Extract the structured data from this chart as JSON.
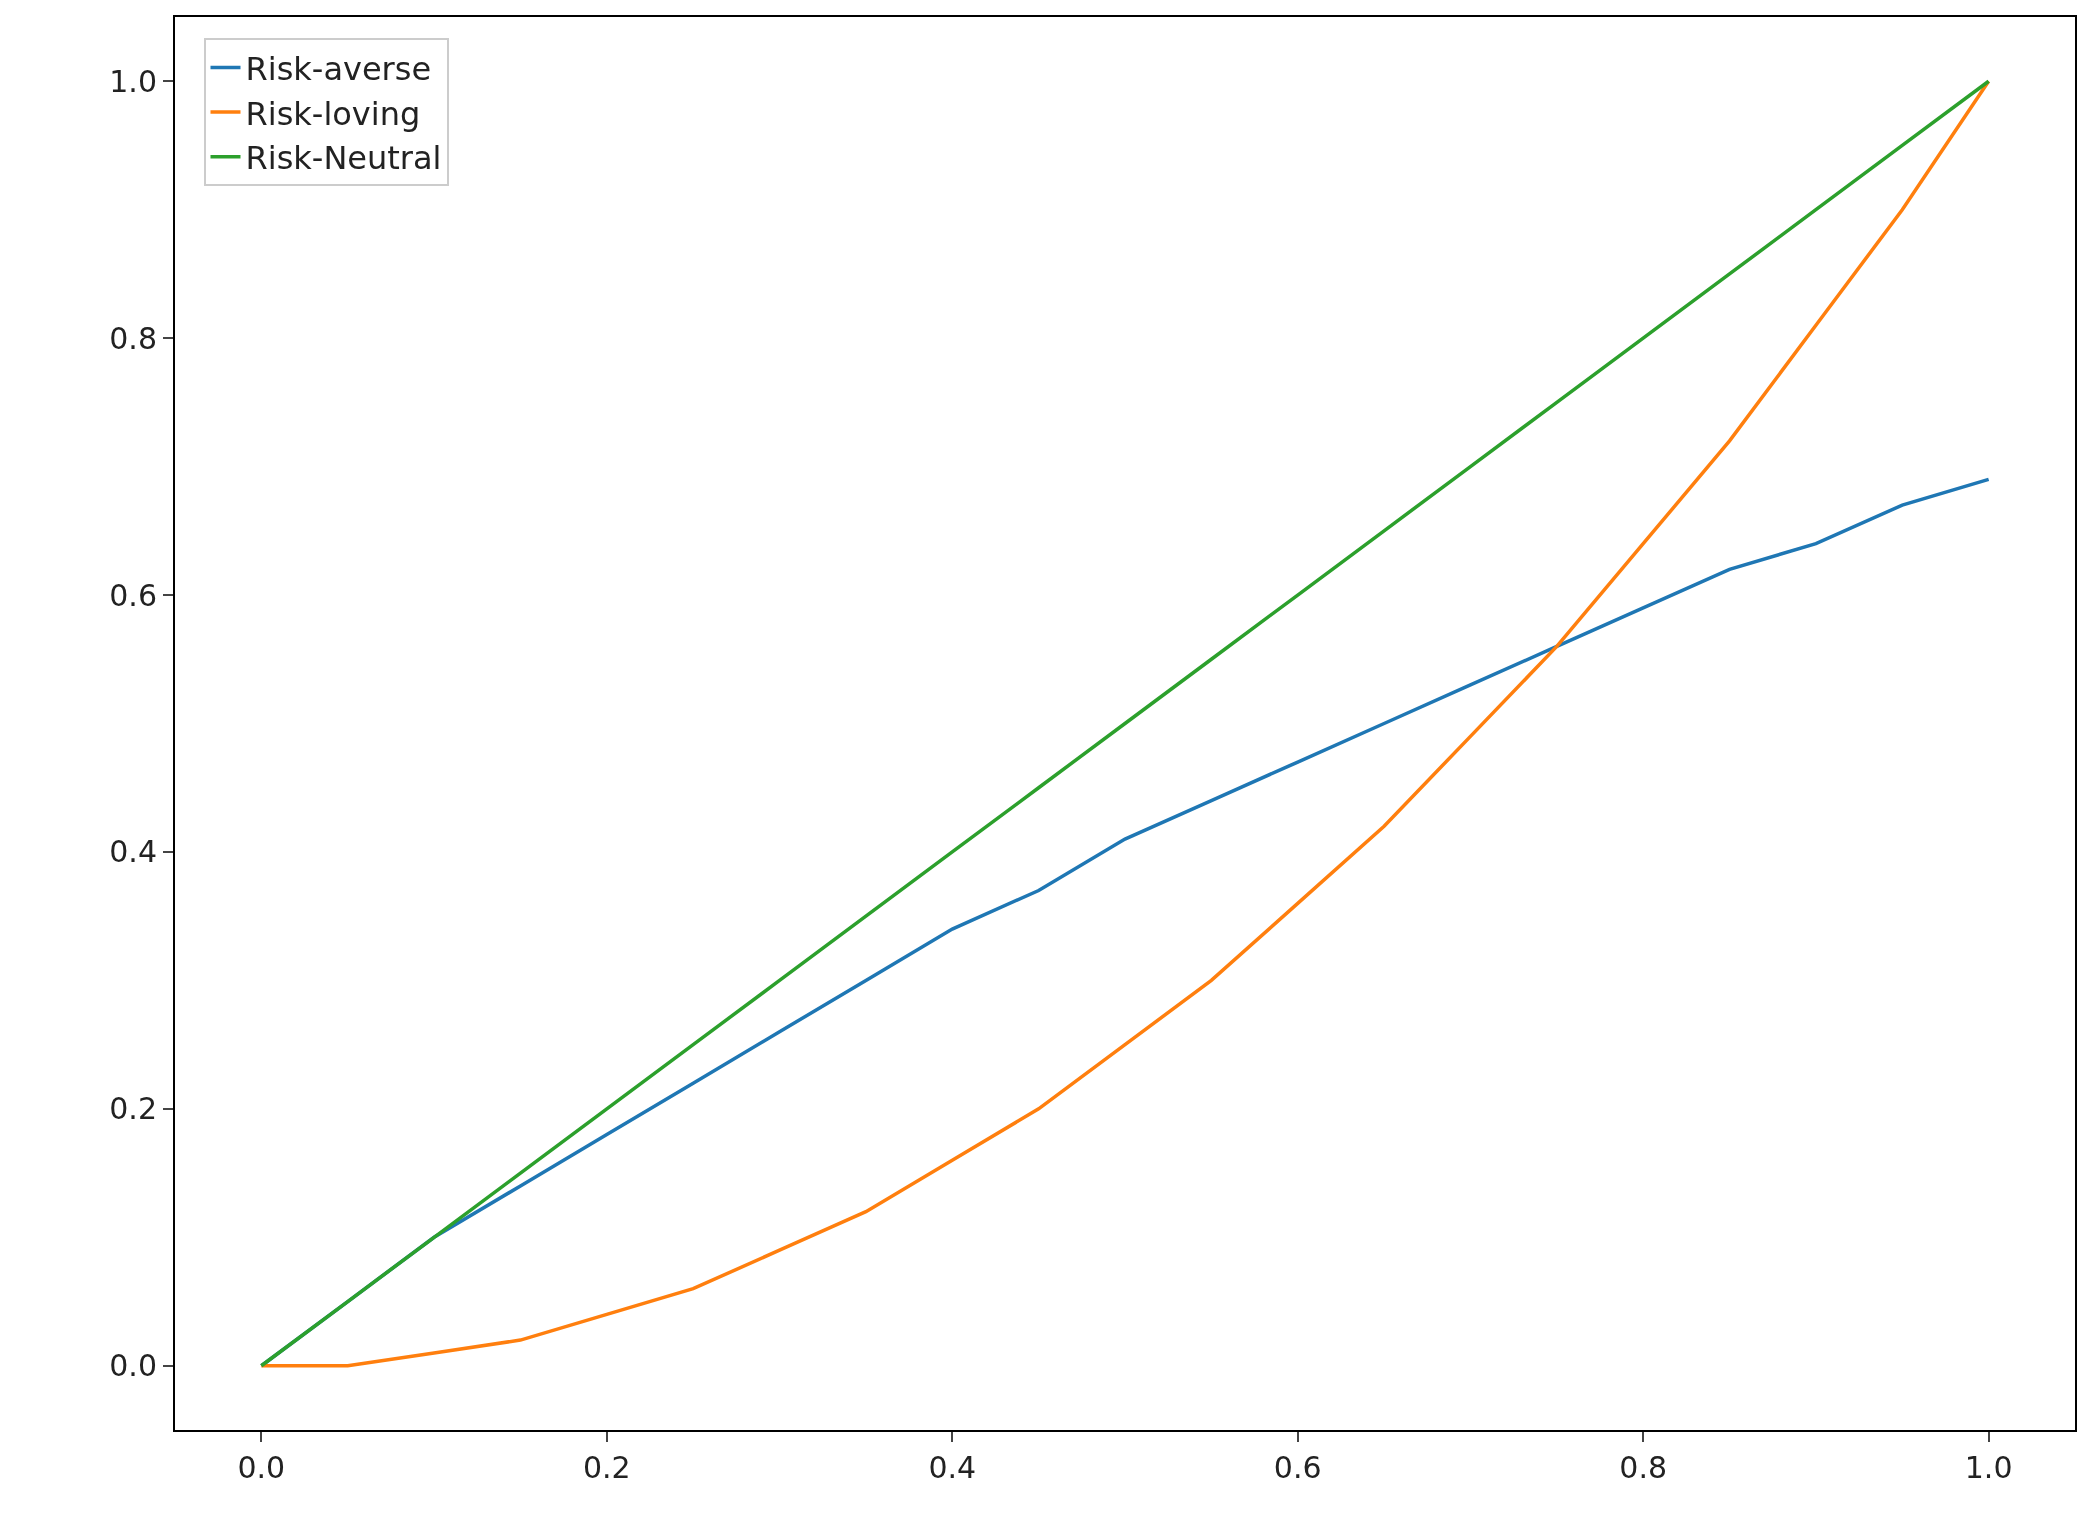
{
  "chart_data": {
    "type": "line",
    "x": [
      0,
      0.05,
      0.1,
      0.15,
      0.2,
      0.25,
      0.3,
      0.35,
      0.4,
      0.45,
      0.5,
      0.55,
      0.6,
      0.65,
      0.7,
      0.75,
      0.8,
      0.85,
      0.9,
      0.95,
      1.0
    ],
    "series": [
      {
        "name": "Risk-averse",
        "color": "#1f77b4",
        "values": [
          0,
          0.05,
          0.1,
          0.14,
          0.18,
          0.22,
          0.26,
          0.3,
          0.34,
          0.37,
          0.41,
          0.44,
          0.47,
          0.5,
          0.53,
          0.56,
          0.59,
          0.62,
          0.64,
          0.67,
          0.69
        ]
      },
      {
        "name": "Risk-loving",
        "color": "#ff7f0e",
        "values": [
          0,
          0.0,
          0.01,
          0.02,
          0.04,
          0.06,
          0.09,
          0.12,
          0.16,
          0.2,
          0.25,
          0.3,
          0.36,
          0.42,
          0.49,
          0.56,
          0.64,
          0.72,
          0.81,
          0.9,
          1.0
        ]
      },
      {
        "name": "Risk-Neutral",
        "color": "#2ca02c",
        "values": [
          0,
          0.05,
          0.1,
          0.15,
          0.2,
          0.25,
          0.3,
          0.35,
          0.4,
          0.45,
          0.5,
          0.55,
          0.6,
          0.65,
          0.7,
          0.75,
          0.8,
          0.85,
          0.9,
          0.95,
          1.0
        ]
      }
    ],
    "xlim": [
      -0.05,
      1.05
    ],
    "ylim": [
      -0.05,
      1.05
    ],
    "xticks": [
      {
        "value": 0,
        "label": "0.0"
      },
      {
        "value": 0.2,
        "label": "0.2"
      },
      {
        "value": 0.4,
        "label": "0.4"
      },
      {
        "value": 0.6,
        "label": "0.6"
      },
      {
        "value": 0.8,
        "label": "0.8"
      },
      {
        "value": 1,
        "label": "1.0"
      }
    ],
    "yticks": [
      {
        "value": 0,
        "label": "0.0"
      },
      {
        "value": 0.2,
        "label": "0.2"
      },
      {
        "value": 0.4,
        "label": "0.4"
      },
      {
        "value": 0.6,
        "label": "0.6"
      },
      {
        "value": 0.8,
        "label": "0.8"
      },
      {
        "value": 1,
        "label": "1.0"
      }
    ],
    "grid": false,
    "legend": "top left",
    "marker": "none",
    "line_style": "solid"
  }
}
